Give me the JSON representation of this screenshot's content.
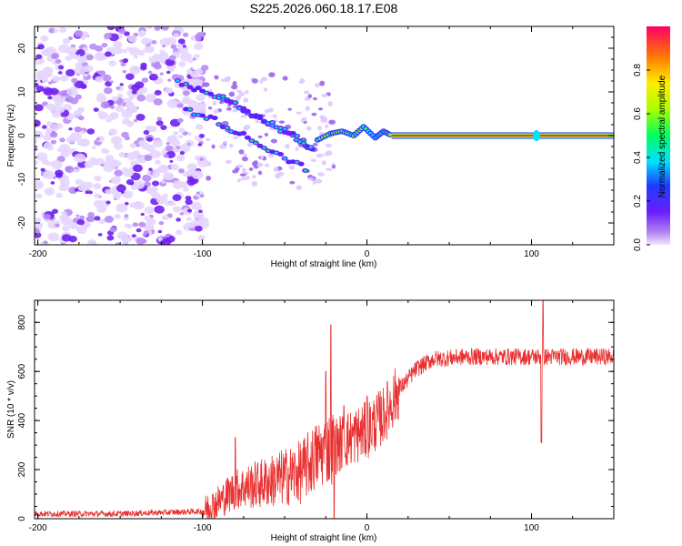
{
  "title": "S225.2026.060.18.17.E08",
  "chart_data": [
    {
      "type": "heatmap",
      "title": "S225.2026.060.18.17.E08",
      "xlabel": "Height of straight line (km)",
      "ylabel": "Frequency (Hz)",
      "xlim": [
        -202,
        150
      ],
      "ylim": [
        -25,
        25
      ],
      "x_ticks": [
        -200,
        -100,
        0,
        100
      ],
      "x_tick_labels": [
        "-200",
        "-100",
        "0",
        "100"
      ],
      "y_ticks": [
        -20,
        -10,
        0,
        10,
        20
      ],
      "y_tick_labels": [
        "-20",
        "-10",
        "0",
        "10",
        "20"
      ],
      "colorbar": {
        "label": "Normalized spectral amplitude",
        "range": [
          0,
          1
        ],
        "ticks": [
          0,
          0.2,
          0.4,
          0.6,
          0.8
        ],
        "tick_labels": [
          "0.0",
          "0.2",
          "0.4",
          "0.6",
          "0.8"
        ]
      },
      "features": {
        "noise_region_x": [
          -202,
          -98
        ],
        "chirp_tracks": [
          {
            "x": [
              -115,
              -100,
              -85,
              -70,
              -55,
              -40,
              -32
            ],
            "y": [
              12,
              10,
              8,
              5,
              2,
              -1,
              -4
            ]
          },
          {
            "x": [
              -110,
              -95,
              -80,
              -65,
              -50,
              -35
            ],
            "y": [
              6,
              4,
              1,
              -2,
              -5,
              -8
            ]
          },
          {
            "x": [
              -90,
              -75,
              -60,
              -45,
              -32
            ],
            "y": [
              9,
              6,
              3,
              0,
              -3
            ]
          }
        ],
        "tone_x_start": 15,
        "tone_frequency": 0
      }
    },
    {
      "type": "line",
      "xlabel": "Height of straight line (km)",
      "ylabel": "SNR (10 * v/v)",
      "xlim": [
        -202,
        150
      ],
      "ylim": [
        0,
        890
      ],
      "x_ticks": [
        -200,
        -100,
        0,
        100
      ],
      "x_tick_labels": [
        "-200",
        "-100",
        "0",
        "100"
      ],
      "y_ticks": [
        0,
        200,
        400,
        600,
        800
      ],
      "y_tick_labels": [
        "0",
        "200",
        "400",
        "600",
        "800"
      ],
      "color": "#e83030",
      "x": [
        -202,
        -150,
        -100,
        -90,
        -80,
        -60,
        -40,
        -30,
        -22,
        -18,
        -10,
        0,
        10,
        20,
        30,
        40,
        60,
        80,
        100,
        150
      ],
      "mean": [
        20,
        20,
        30,
        70,
        120,
        150,
        190,
        260,
        290,
        300,
        330,
        360,
        420,
        530,
        610,
        650,
        660,
        660,
        660,
        660
      ],
      "spikes": [
        {
          "x": -80,
          "y": 330
        },
        {
          "x": -22,
          "y": 790
        },
        {
          "x": -25,
          "y": 600
        },
        {
          "x": -20,
          "y": 0
        },
        {
          "x": -14,
          "y": 460
        },
        {
          "x": 0,
          "y": 500
        },
        {
          "x": 107,
          "y": 890
        },
        {
          "x": 106,
          "y": 310
        }
      ]
    }
  ]
}
